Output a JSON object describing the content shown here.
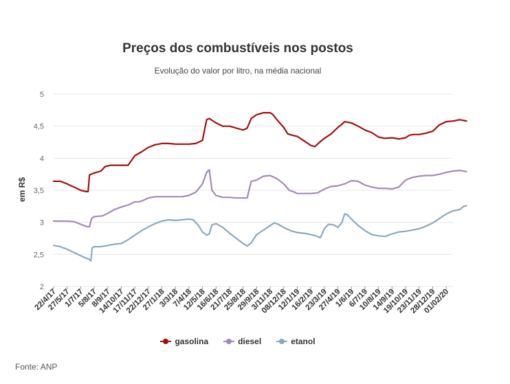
{
  "chart_data": {
    "type": "line",
    "title": "Preços dos combustíveis nos postos",
    "subtitle": "Evolução do valor por litro, na média nacional",
    "ylabel": "em R$",
    "xlabel": "",
    "ylim": [
      2,
      5
    ],
    "yticks": [
      "2",
      "2,5",
      "3",
      "3,5",
      "4",
      "4,5",
      "5"
    ],
    "ytick_values": [
      2,
      2.5,
      3,
      3.5,
      4,
      4.5,
      5
    ],
    "grid": "horizontal",
    "legend_position": "bottom",
    "source": "Fonte: ANP",
    "x_tick_labels": [
      "22/4/17",
      "27/5/17",
      "1/7/17",
      "5/8/17",
      "8/9/17",
      "14/10/17",
      "17/11/17",
      "22/12/17",
      "27/1/18",
      "3/3/18",
      "7/4/18",
      "12/5/18",
      "16/6/18",
      "21/7/18",
      "25/8/18",
      "29/9/18",
      "3/11/18",
      "08/12/18",
      "12/1/19",
      "16/2/19",
      "23/3/19",
      "27/4/19",
      "1/6/19",
      "6/7/19",
      "10/8/19",
      "14/9/19",
      "19/10/19",
      "23/11/19",
      "28/12/19",
      "01/02/20"
    ],
    "series": [
      {
        "name": "gasolina",
        "color": "#a50d0d",
        "points": [
          [
            0,
            3.64
          ],
          [
            0.5,
            3.64
          ],
          [
            1,
            3.6
          ],
          [
            1.5,
            3.55
          ],
          [
            2,
            3.5
          ],
          [
            2.4,
            3.48
          ],
          [
            2.55,
            3.48
          ],
          [
            2.65,
            3.74
          ],
          [
            3,
            3.77
          ],
          [
            3.5,
            3.8
          ],
          [
            3.8,
            3.87
          ],
          [
            4.2,
            3.89
          ],
          [
            5,
            3.89
          ],
          [
            5.5,
            3.89
          ],
          [
            6,
            4.04
          ],
          [
            6.5,
            4.1
          ],
          [
            7,
            4.17
          ],
          [
            7.5,
            4.21
          ],
          [
            8,
            4.23
          ],
          [
            8.5,
            4.23
          ],
          [
            9,
            4.22
          ],
          [
            10,
            4.22
          ],
          [
            10.5,
            4.23
          ],
          [
            11,
            4.28
          ],
          [
            11.3,
            4.6
          ],
          [
            11.5,
            4.62
          ],
          [
            12,
            4.55
          ],
          [
            12.5,
            4.5
          ],
          [
            13,
            4.5
          ],
          [
            13.5,
            4.47
          ],
          [
            14,
            4.44
          ],
          [
            14.3,
            4.47
          ],
          [
            14.6,
            4.62
          ],
          [
            15,
            4.68
          ],
          [
            15.5,
            4.71
          ],
          [
            16,
            4.71
          ],
          [
            16.2,
            4.68
          ],
          [
            16.5,
            4.6
          ],
          [
            17,
            4.48
          ],
          [
            17.3,
            4.38
          ],
          [
            17.6,
            4.36
          ],
          [
            18,
            4.34
          ],
          [
            18.5,
            4.27
          ],
          [
            19,
            4.2
          ],
          [
            19.3,
            4.18
          ],
          [
            19.6,
            4.24
          ],
          [
            20,
            4.31
          ],
          [
            20.5,
            4.38
          ],
          [
            21,
            4.48
          ],
          [
            21.3,
            4.53
          ],
          [
            21.5,
            4.57
          ],
          [
            22,
            4.55
          ],
          [
            22.5,
            4.5
          ],
          [
            23,
            4.44
          ],
          [
            23.5,
            4.4
          ],
          [
            24,
            4.33
          ],
          [
            24.5,
            4.31
          ],
          [
            25,
            4.32
          ],
          [
            25.5,
            4.3
          ],
          [
            26,
            4.32
          ],
          [
            26.3,
            4.36
          ],
          [
            26.6,
            4.37
          ],
          [
            27,
            4.37
          ],
          [
            27.5,
            4.39
          ],
          [
            28,
            4.42
          ],
          [
            28.5,
            4.52
          ],
          [
            29,
            4.57
          ],
          [
            29.5,
            4.58
          ],
          [
            30,
            4.6
          ],
          [
            30.5,
            4.58
          ]
        ]
      },
      {
        "name": "diesel",
        "color": "#a388b8",
        "points": [
          [
            0,
            3.02
          ],
          [
            1,
            3.02
          ],
          [
            1.5,
            3.01
          ],
          [
            2,
            2.97
          ],
          [
            2.5,
            2.93
          ],
          [
            2.65,
            2.93
          ],
          [
            2.8,
            3.06
          ],
          [
            3,
            3.09
          ],
          [
            3.6,
            3.1
          ],
          [
            4,
            3.14
          ],
          [
            4.5,
            3.2
          ],
          [
            5,
            3.24
          ],
          [
            5.5,
            3.27
          ],
          [
            6,
            3.32
          ],
          [
            6.3,
            3.32
          ],
          [
            6.6,
            3.34
          ],
          [
            7,
            3.38
          ],
          [
            7.5,
            3.4
          ],
          [
            8,
            3.4
          ],
          [
            8.5,
            3.4
          ],
          [
            9,
            3.4
          ],
          [
            9.5,
            3.4
          ],
          [
            10,
            3.42
          ],
          [
            10.5,
            3.47
          ],
          [
            11,
            3.6
          ],
          [
            11.3,
            3.78
          ],
          [
            11.5,
            3.82
          ],
          [
            11.7,
            3.5
          ],
          [
            12,
            3.42
          ],
          [
            12.5,
            3.39
          ],
          [
            13,
            3.39
          ],
          [
            13.5,
            3.38
          ],
          [
            14,
            3.38
          ],
          [
            14.3,
            3.38
          ],
          [
            14.6,
            3.64
          ],
          [
            15,
            3.66
          ],
          [
            15.5,
            3.72
          ],
          [
            16,
            3.73
          ],
          [
            16.5,
            3.68
          ],
          [
            17,
            3.6
          ],
          [
            17.4,
            3.5
          ],
          [
            17.8,
            3.47
          ],
          [
            18,
            3.45
          ],
          [
            18.5,
            3.45
          ],
          [
            19,
            3.45
          ],
          [
            19.5,
            3.46
          ],
          [
            20,
            3.52
          ],
          [
            20.5,
            3.56
          ],
          [
            21,
            3.57
          ],
          [
            21.5,
            3.6
          ],
          [
            22,
            3.65
          ],
          [
            22.5,
            3.64
          ],
          [
            23,
            3.58
          ],
          [
            23.5,
            3.55
          ],
          [
            24,
            3.53
          ],
          [
            24.5,
            3.53
          ],
          [
            25,
            3.52
          ],
          [
            25.5,
            3.55
          ],
          [
            26,
            3.66
          ],
          [
            26.5,
            3.7
          ],
          [
            27,
            3.72
          ],
          [
            27.5,
            3.73
          ],
          [
            28,
            3.73
          ],
          [
            28.5,
            3.75
          ],
          [
            29,
            3.78
          ],
          [
            29.5,
            3.8
          ],
          [
            30,
            3.81
          ],
          [
            30.5,
            3.79
          ]
        ]
      },
      {
        "name": "etanol",
        "color": "#8aa9bc",
        "points": [
          [
            0,
            2.64
          ],
          [
            0.5,
            2.62
          ],
          [
            1,
            2.58
          ],
          [
            1.5,
            2.53
          ],
          [
            2,
            2.48
          ],
          [
            2.4,
            2.44
          ],
          [
            2.6,
            2.43
          ],
          [
            2.75,
            2.4
          ],
          [
            2.85,
            2.6
          ],
          [
            3,
            2.62
          ],
          [
            3.5,
            2.62
          ],
          [
            4,
            2.64
          ],
          [
            4.5,
            2.66
          ],
          [
            5,
            2.67
          ],
          [
            5.5,
            2.73
          ],
          [
            6,
            2.8
          ],
          [
            6.5,
            2.87
          ],
          [
            7,
            2.93
          ],
          [
            7.5,
            2.98
          ],
          [
            8,
            3.02
          ],
          [
            8.5,
            3.04
          ],
          [
            9,
            3.03
          ],
          [
            9.5,
            3.04
          ],
          [
            10,
            3.05
          ],
          [
            10.3,
            3.04
          ],
          [
            10.7,
            2.95
          ],
          [
            11,
            2.85
          ],
          [
            11.3,
            2.8
          ],
          [
            11.5,
            2.82
          ],
          [
            11.7,
            2.96
          ],
          [
            12,
            2.98
          ],
          [
            12.5,
            2.92
          ],
          [
            13,
            2.83
          ],
          [
            13.5,
            2.75
          ],
          [
            14,
            2.67
          ],
          [
            14.3,
            2.63
          ],
          [
            14.6,
            2.68
          ],
          [
            15,
            2.81
          ],
          [
            15.5,
            2.88
          ],
          [
            16,
            2.95
          ],
          [
            16.3,
            2.99
          ],
          [
            16.6,
            2.97
          ],
          [
            17,
            2.92
          ],
          [
            17.5,
            2.87
          ],
          [
            18,
            2.84
          ],
          [
            18.5,
            2.83
          ],
          [
            19,
            2.81
          ],
          [
            19.5,
            2.78
          ],
          [
            19.7,
            2.76
          ],
          [
            20,
            2.9
          ],
          [
            20.3,
            2.97
          ],
          [
            20.7,
            2.96
          ],
          [
            21,
            2.92
          ],
          [
            21.3,
            3.0
          ],
          [
            21.5,
            3.13
          ],
          [
            21.7,
            3.12
          ],
          [
            22,
            3.05
          ],
          [
            22.5,
            2.95
          ],
          [
            23,
            2.87
          ],
          [
            23.5,
            2.81
          ],
          [
            24,
            2.79
          ],
          [
            24.5,
            2.78
          ],
          [
            25,
            2.82
          ],
          [
            25.5,
            2.85
          ],
          [
            26,
            2.86
          ],
          [
            26.5,
            2.88
          ],
          [
            27,
            2.9
          ],
          [
            27.5,
            2.94
          ],
          [
            28,
            2.99
          ],
          [
            28.5,
            3.06
          ],
          [
            29,
            3.13
          ],
          [
            29.5,
            3.18
          ],
          [
            30,
            3.2
          ],
          [
            30.3,
            3.25
          ],
          [
            30.5,
            3.26
          ]
        ]
      }
    ]
  }
}
